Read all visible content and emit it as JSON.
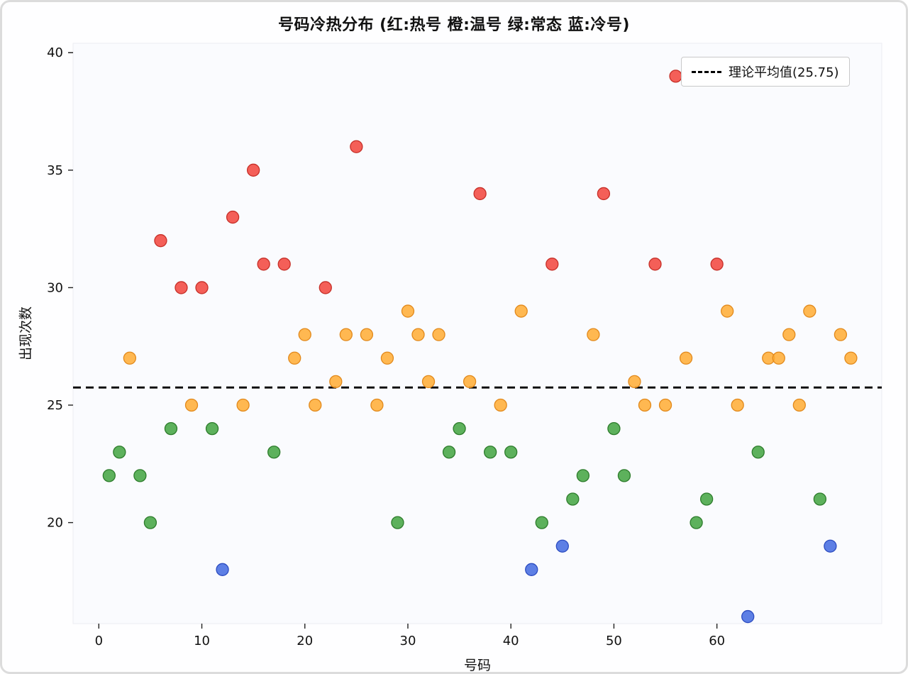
{
  "chart_data": {
    "type": "scatter",
    "title": "号码冷热分布 (红:热号 橙:温号 绿:常态 蓝:冷号)",
    "xlabel": "号码",
    "ylabel": "出现次数",
    "xlim": [
      -2.5,
      76
    ],
    "ylim": [
      15.7,
      40.4
    ],
    "x_ticks": [
      0,
      10,
      20,
      30,
      40,
      50,
      60
    ],
    "y_ticks": [
      20,
      25,
      30,
      35,
      40
    ],
    "grid": false,
    "legend": {
      "position": "upper right",
      "label": "理论平均值(25.75)"
    },
    "mean_line": {
      "value": 25.75,
      "style": "dashed",
      "color": "#000000"
    },
    "point_style": {
      "radius": 8.5,
      "fill_opacity": 0.85,
      "edge_width": 1.3
    },
    "plot_area_color": "#fafbfe",
    "series": [
      {
        "name": "热号",
        "color_name": "红",
        "color": "#f2433b",
        "edge_color": "#c62f28",
        "points": [
          [
            6,
            32
          ],
          [
            8,
            30
          ],
          [
            10,
            30
          ],
          [
            13,
            33
          ],
          [
            15,
            35
          ],
          [
            16,
            31
          ],
          [
            18,
            31
          ],
          [
            22,
            30
          ],
          [
            25,
            36
          ],
          [
            37,
            34
          ],
          [
            44,
            31
          ],
          [
            49,
            34
          ],
          [
            54,
            31
          ],
          [
            56,
            39
          ],
          [
            60,
            31
          ]
        ]
      },
      {
        "name": "温号",
        "color_name": "橙",
        "color": "#ffab33",
        "edge_color": "#e2891c",
        "points": [
          [
            3,
            27
          ],
          [
            9,
            25
          ],
          [
            14,
            25
          ],
          [
            19,
            27
          ],
          [
            20,
            28
          ],
          [
            21,
            25
          ],
          [
            23,
            26
          ],
          [
            24,
            28
          ],
          [
            26,
            28
          ],
          [
            27,
            25
          ],
          [
            28,
            27
          ],
          [
            30,
            29
          ],
          [
            31,
            28
          ],
          [
            32,
            26
          ],
          [
            33,
            28
          ],
          [
            36,
            26
          ],
          [
            39,
            25
          ],
          [
            41,
            29
          ],
          [
            48,
            28
          ],
          [
            52,
            26
          ],
          [
            53,
            25
          ],
          [
            55,
            25
          ],
          [
            57,
            27
          ],
          [
            61,
            29
          ],
          [
            62,
            25
          ],
          [
            65,
            27
          ],
          [
            66,
            27
          ],
          [
            67,
            28
          ],
          [
            68,
            25
          ],
          [
            69,
            29
          ],
          [
            72,
            28
          ],
          [
            73,
            27
          ]
        ]
      },
      {
        "name": "常态",
        "color_name": "绿",
        "color": "#41a33f",
        "edge_color": "#2d7c2c",
        "points": [
          [
            1,
            22
          ],
          [
            2,
            23
          ],
          [
            4,
            22
          ],
          [
            5,
            20
          ],
          [
            7,
            24
          ],
          [
            11,
            24
          ],
          [
            17,
            23
          ],
          [
            29,
            20
          ],
          [
            34,
            23
          ],
          [
            35,
            24
          ],
          [
            38,
            23
          ],
          [
            40,
            23
          ],
          [
            43,
            20
          ],
          [
            46,
            21
          ],
          [
            47,
            22
          ],
          [
            50,
            24
          ],
          [
            51,
            22
          ],
          [
            58,
            20
          ],
          [
            59,
            21
          ],
          [
            64,
            23
          ],
          [
            70,
            21
          ]
        ]
      },
      {
        "name": "冷号",
        "color_name": "蓝",
        "color": "#4169e1",
        "edge_color": "#2c4cc0",
        "points": [
          [
            12,
            18
          ],
          [
            42,
            18
          ],
          [
            45,
            19
          ],
          [
            63,
            16
          ],
          [
            71,
            19
          ]
        ]
      }
    ]
  }
}
